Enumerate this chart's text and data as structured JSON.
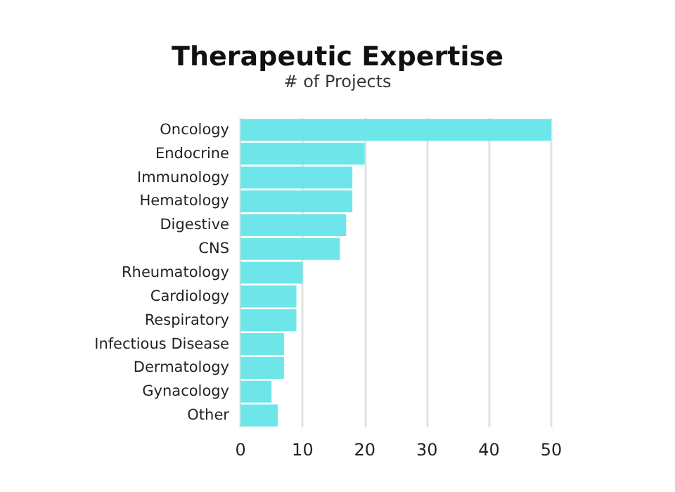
{
  "chart_data": {
    "type": "bar",
    "title": "Therapeutic Expertise",
    "subtitle": "# of Projects",
    "orientation": "horizontal",
    "categories": [
      "Oncology",
      "Endocrine",
      "Immunology",
      "Hematology",
      "Digestive",
      "CNS",
      "Rheumatology",
      "Cardiology",
      "Respiratory",
      "Infectious Disease",
      "Dermatology",
      "Gynacology",
      "Other"
    ],
    "values": [
      50,
      20,
      18,
      18,
      17,
      16,
      10,
      9,
      9,
      7,
      7,
      5,
      6
    ],
    "color": "#6ee6e9",
    "xlim": [
      0,
      50
    ],
    "xticks": [
      0,
      10,
      20,
      30,
      40,
      50
    ],
    "grid": "x"
  }
}
